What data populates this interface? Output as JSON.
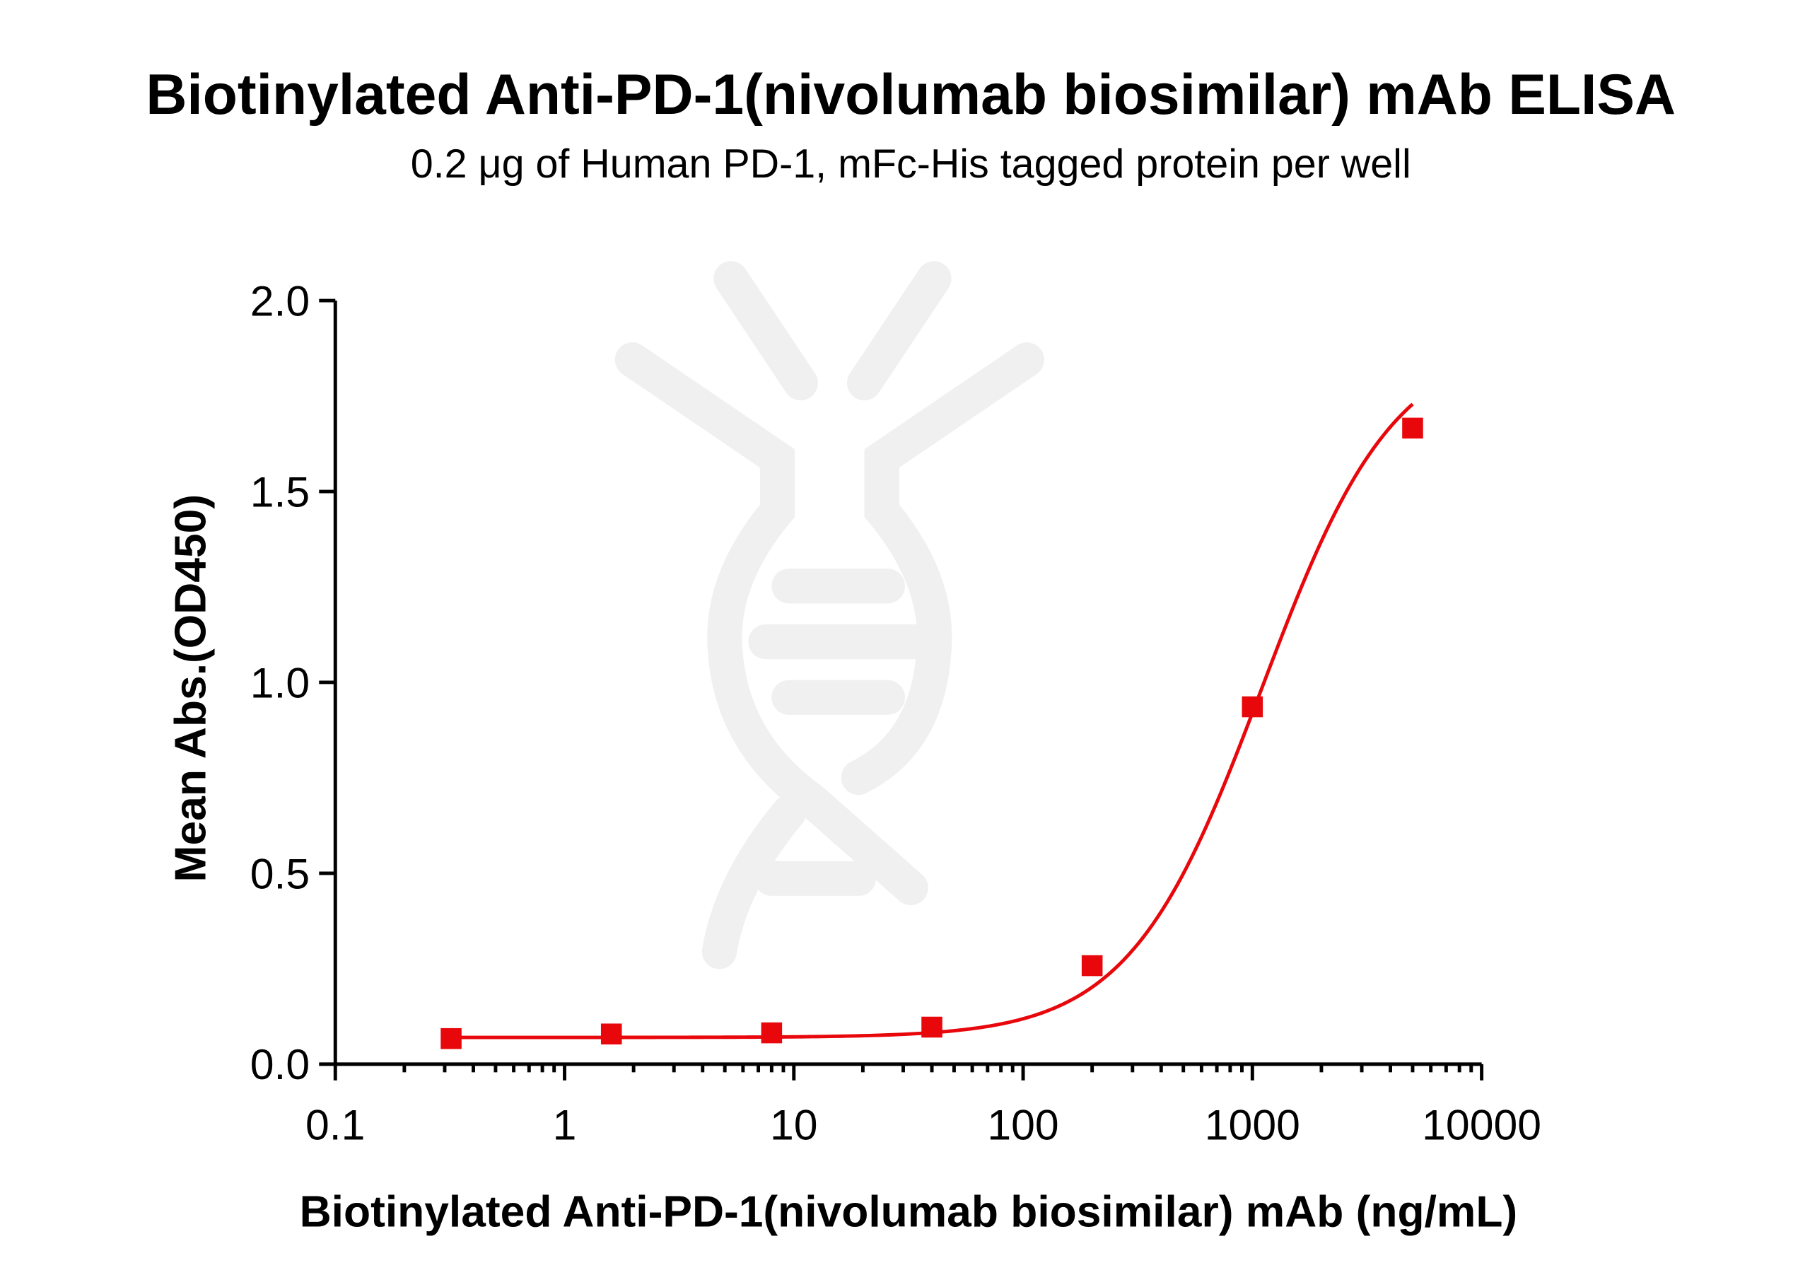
{
  "chart_data": {
    "type": "scatter",
    "title": "Biotinylated Anti-PD-1(nivolumab biosimilar) mAb ELISA",
    "subtitle": "0.2 μg of Human PD-1, mFc-His tagged protein per well",
    "xlabel": "Biotinylated Anti-PD-1(nivolumab biosimilar) mAb (ng/mL)",
    "ylabel": "Mean Abs.(OD450)",
    "xscale": "log",
    "xlim": [
      0.1,
      10000
    ],
    "ylim": [
      0,
      2.0
    ],
    "xticks": [
      "0.1",
      "1",
      "10",
      "100",
      "1000",
      "10000"
    ],
    "xtick_values": [
      0.1,
      1,
      10,
      100,
      1000,
      10000
    ],
    "yticks": [
      "0.0",
      "0.5",
      "1.0",
      "1.5",
      "2.0"
    ],
    "ytick_values": [
      0,
      0.5,
      1.0,
      1.5,
      2.0
    ],
    "grid": false,
    "series": [
      {
        "name": "Biotinylated Anti-PD-1(nivolumab biosimilar) mAb",
        "color": "#e8070b",
        "marker": "square",
        "x": [
          0.32,
          1.6,
          8,
          40,
          200,
          1000,
          5000
        ],
        "y": [
          0.067,
          0.079,
          0.082,
          0.097,
          0.258,
          0.936,
          1.666
        ],
        "fit": {
          "model": "4PL",
          "bottom": 0.07,
          "top": 1.9,
          "ec50": 1100,
          "hill": 1.5
        }
      }
    ]
  }
}
